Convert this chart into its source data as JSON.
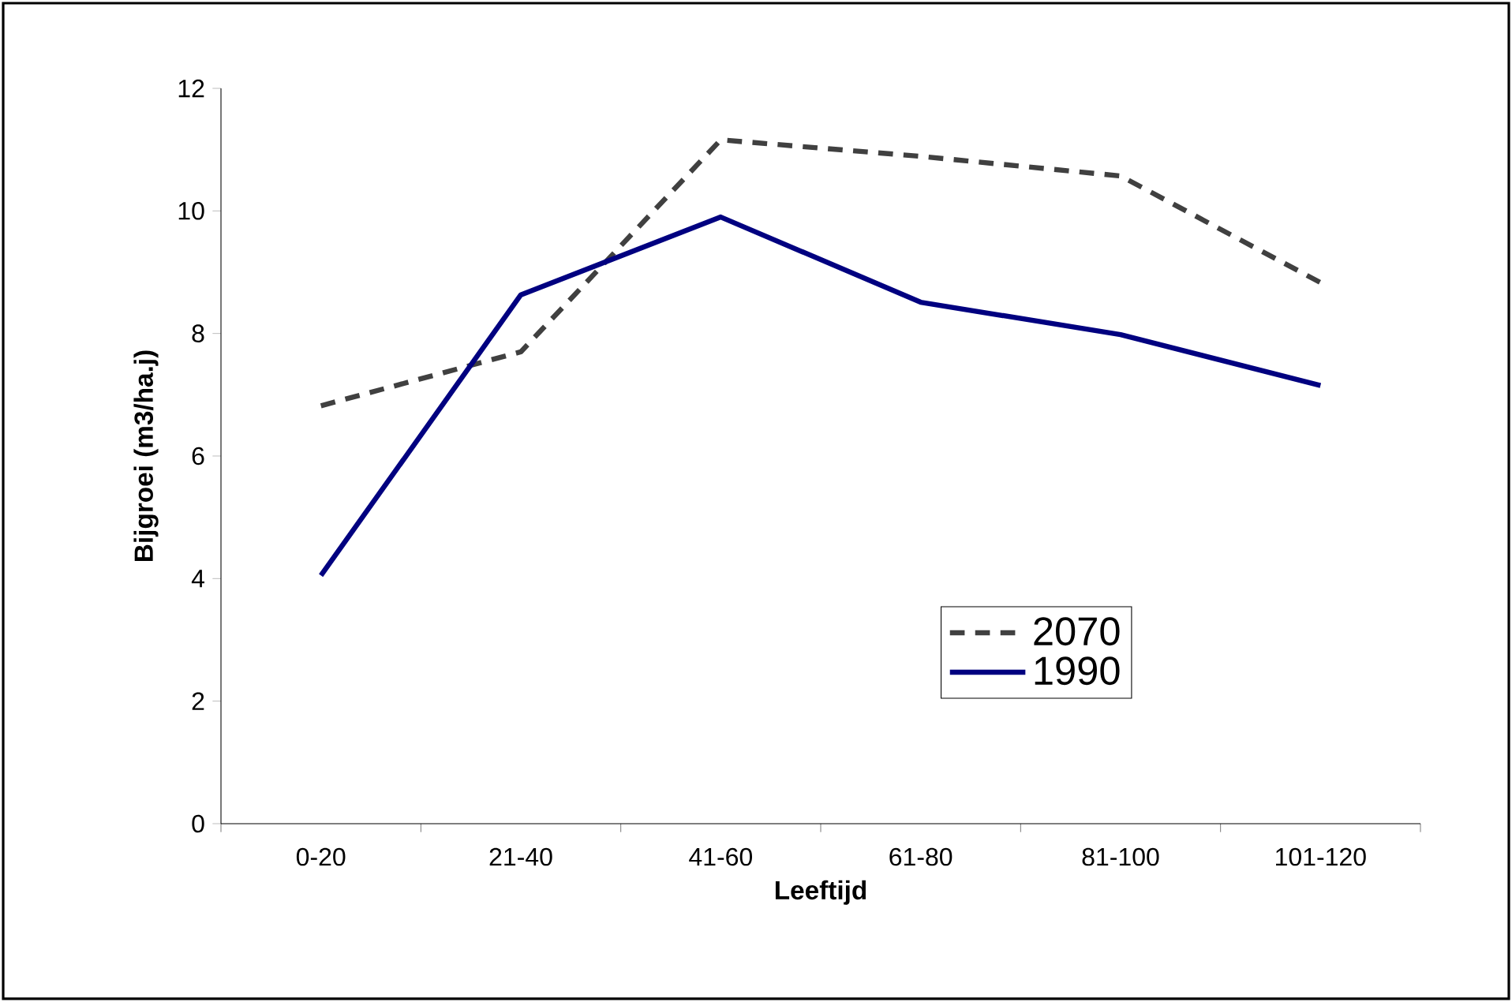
{
  "chart_data": {
    "type": "line",
    "xlabel": "Leeftijd",
    "ylabel": "Bijgroei (m3/ha.j)",
    "categories": [
      "0-20",
      "21-40",
      "41-60",
      "61-80",
      "81-100",
      "101-120"
    ],
    "series": [
      {
        "name": "2070",
        "color": "#404040",
        "line_style": "dashed",
        "values": [
          6.82,
          7.7,
          11.16,
          10.89,
          10.57,
          8.83
        ]
      },
      {
        "name": "1990",
        "color": "#000080",
        "line_style": "solid",
        "values": [
          4.05,
          8.63,
          9.9,
          8.51,
          7.98,
          7.15
        ]
      }
    ],
    "ylim": [
      0,
      12
    ],
    "yticks": [
      0,
      2,
      4,
      6,
      8,
      10,
      12
    ],
    "legend": "bottom right",
    "grid": false,
    "marker": "none"
  }
}
